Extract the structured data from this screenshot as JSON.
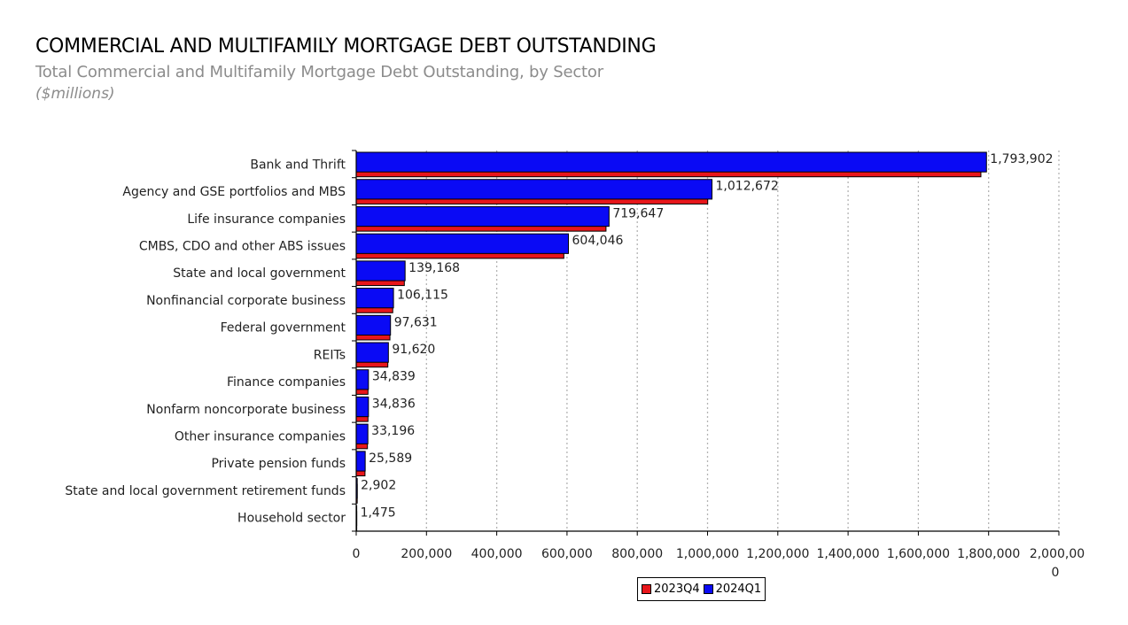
{
  "header": {
    "title": "COMMERCIAL AND MULTIFAMILY MORTGAGE DEBT OUTSTANDING",
    "subtitle": "Total Commercial and Multifamily Mortgage Debt Outstanding, by Sector",
    "units": "($millions)"
  },
  "colors": {
    "series_2023Q4": "#e8161b",
    "series_2024Q1": "#0a0af5",
    "grid": "#b3b3b3",
    "axis": "#000000"
  },
  "legend": {
    "items": [
      {
        "label": "2023Q4",
        "color": "#e8161b"
      },
      {
        "label": "2024Q1",
        "color": "#0a0af5"
      }
    ]
  },
  "chart_data": {
    "type": "bar",
    "orientation": "horizontal",
    "title": "COMMERCIAL AND MULTIFAMILY MORTGAGE DEBT OUTSTANDING",
    "subtitle": "Total Commercial and Multifamily Mortgage Debt Outstanding, by Sector",
    "xlabel": "",
    "ylabel": "",
    "xlim": [
      0,
      2000000
    ],
    "x_ticks": [
      0,
      200000,
      400000,
      600000,
      800000,
      1000000,
      1200000,
      1400000,
      1600000,
      1800000,
      2000000
    ],
    "x_tick_labels": [
      "0",
      "200,000",
      "400,000",
      "600,000",
      "800,000",
      "1,000,000",
      "1,200,000",
      "1,400,000",
      "1,600,000",
      "1,800,000",
      "2,000,000"
    ],
    "grid": "vertical dotted",
    "legend_position": "bottom",
    "categories": [
      "Bank and Thrift",
      "Agency and GSE portfolios and MBS",
      "Life insurance companies",
      "CMBS, CDO and other ABS issues",
      "State and local government",
      "Nonfinancial corporate business",
      "Federal government",
      "REITs",
      "Finance companies",
      "Nonfarm noncorporate business",
      "Other insurance companies",
      "Private pension funds",
      "State and local government retirement funds",
      "Household sector"
    ],
    "series": [
      {
        "name": "2023Q4",
        "values": [
          1778000,
          1000500,
          711000,
          591000,
          137000,
          104000,
          96000,
          90000,
          33500,
          33500,
          32000,
          25000,
          2900,
          1460
        ]
      },
      {
        "name": "2024Q1",
        "values": [
          1793902,
          1012672,
          719647,
          604046,
          139168,
          106115,
          97631,
          91620,
          34839,
          34836,
          33196,
          25589,
          2902,
          1475
        ]
      }
    ],
    "data_labels": [
      "1,793,902",
      "1,012,672",
      "719,647",
      "604,046",
      "139,168",
      "106,115",
      "97,631",
      "91,620",
      "34,839",
      "34,836",
      "33,196",
      "25,589",
      "2,902",
      "1,475"
    ]
  }
}
